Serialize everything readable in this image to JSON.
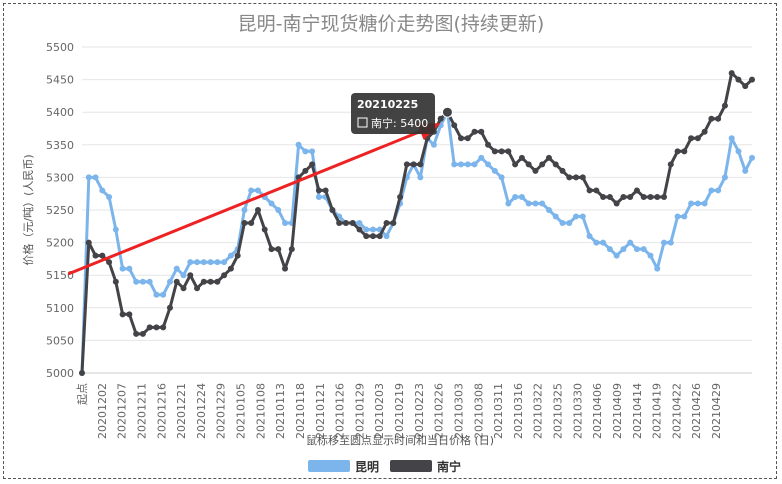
{
  "chart_data": {
    "type": "line",
    "title": "昆明-南宁现货糖价走势图(持续更新)",
    "xlabel": "鼠标移至圆点显示时间和当日价格 (日)",
    "ylabel": "价格（元/吨）(人民币)",
    "ylim": [
      5000,
      5500
    ],
    "yticks": [
      5000,
      5050,
      5100,
      5150,
      5200,
      5250,
      5300,
      5350,
      5400,
      5450,
      5500
    ],
    "grid": true,
    "legend_position": "bottom",
    "x_labels": [
      "起点",
      "20201202",
      "20201207",
      "20201211",
      "20201216",
      "20201221",
      "20201224",
      "20201229",
      "20210105",
      "20210108",
      "20210113",
      "20210118",
      "20210121",
      "20210126",
      "20210129",
      "20210203",
      "20210219",
      "20210223",
      "20210226",
      "20210303",
      "20210308",
      "20210311",
      "20210316",
      "20210322",
      "20210325",
      "20210330",
      "20210406",
      "20210409",
      "20210414",
      "20210419",
      "20210422",
      "20210426",
      "20210429"
    ],
    "series": [
      {
        "name": "昆明",
        "color": "#7cb5ec",
        "values": [
          5000,
          5300,
          5300,
          5280,
          5270,
          5220,
          5160,
          5160,
          5140,
          5140,
          5140,
          5120,
          5120,
          5140,
          5160,
          5150,
          5170,
          5170,
          5170,
          5170,
          5170,
          5170,
          5180,
          5190,
          5250,
          5280,
          5280,
          5270,
          5260,
          5250,
          5230,
          5230,
          5350,
          5340,
          5340,
          5270,
          5270,
          5250,
          5240,
          5230,
          5230,
          5230,
          5220,
          5220,
          5220,
          5210,
          5230,
          5260,
          5300,
          5320,
          5300,
          5360,
          5350,
          5380,
          5400,
          5320,
          5320,
          5320,
          5320,
          5330,
          5320,
          5310,
          5300,
          5260,
          5270,
          5270,
          5260,
          5260,
          5260,
          5250,
          5240,
          5230,
          5230,
          5240,
          5240,
          5210,
          5200,
          5200,
          5190,
          5180,
          5190,
          5200,
          5190,
          5190,
          5180,
          5160,
          5200,
          5200,
          5240,
          5240,
          5260,
          5260,
          5260,
          5280,
          5280,
          5300,
          5360,
          5340,
          5310,
          5330
        ]
      },
      {
        "name": "南宁",
        "color": "#434348",
        "values": [
          5000,
          5200,
          5180,
          5180,
          5170,
          5140,
          5090,
          5090,
          5060,
          5060,
          5070,
          5070,
          5070,
          5100,
          5140,
          5130,
          5150,
          5130,
          5140,
          5140,
          5140,
          5150,
          5160,
          5180,
          5230,
          5230,
          5250,
          5220,
          5190,
          5190,
          5160,
          5190,
          5300,
          5310,
          5320,
          5280,
          5280,
          5250,
          5230,
          5230,
          5230,
          5220,
          5210,
          5210,
          5210,
          5230,
          5230,
          5270,
          5320,
          5320,
          5320,
          5360,
          5370,
          5390,
          5400,
          5380,
          5360,
          5360,
          5370,
          5370,
          5350,
          5340,
          5340,
          5340,
          5320,
          5330,
          5320,
          5310,
          5320,
          5330,
          5320,
          5310,
          5300,
          5300,
          5300,
          5280,
          5280,
          5270,
          5270,
          5260,
          5270,
          5270,
          5280,
          5270,
          5270,
          5270,
          5270,
          5320,
          5340,
          5340,
          5360,
          5360,
          5370,
          5390,
          5390,
          5410,
          5460,
          5450,
          5440,
          5450
        ]
      }
    ],
    "tooltip": {
      "date": "20210225",
      "series": "南宁",
      "label": "南宁: 5400",
      "index": 54
    },
    "annotation": {
      "type": "arrow",
      "color": "#ee2222",
      "from": [
        -2,
        5152
      ],
      "to": [
        53,
        5383
      ]
    }
  }
}
